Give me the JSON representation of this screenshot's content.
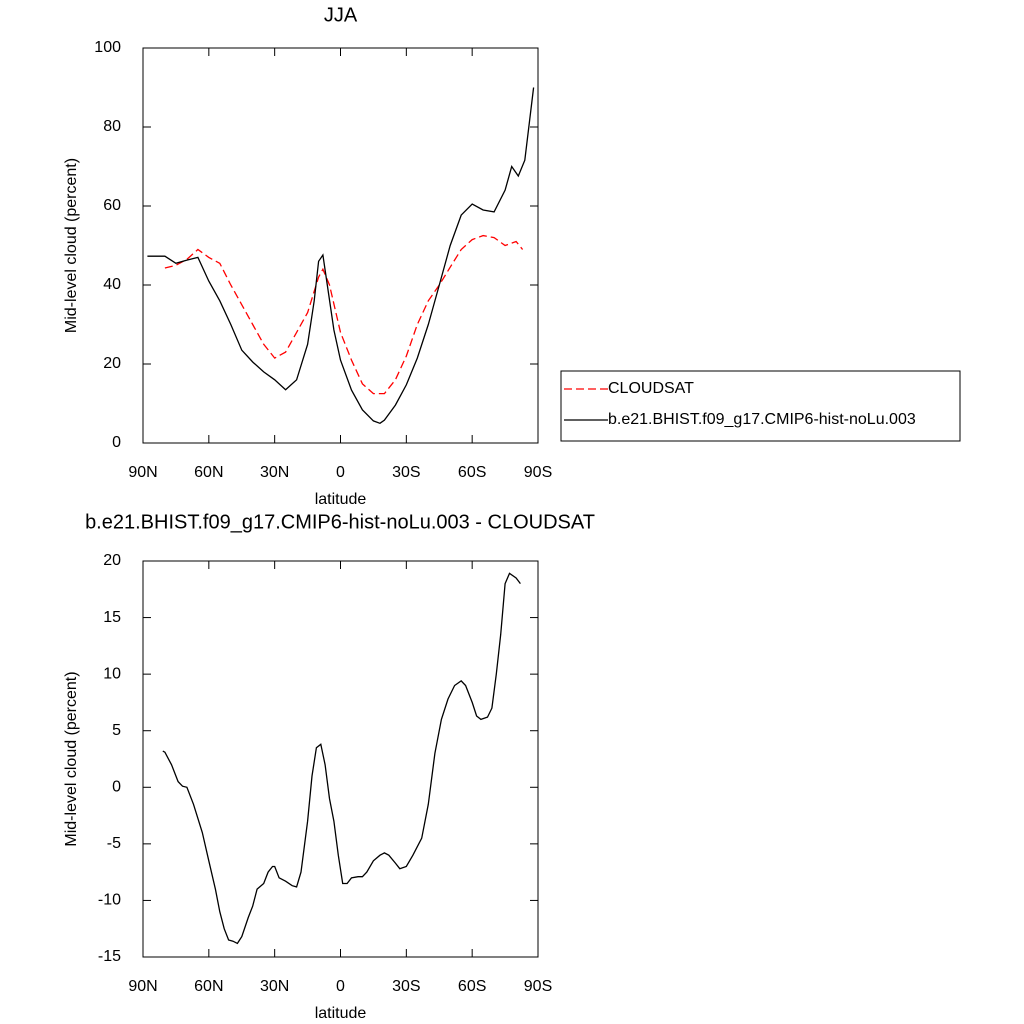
{
  "chart_data": [
    {
      "type": "line",
      "title": "JJA",
      "x_label": "latitude",
      "y_label": "Mid-level cloud (percent)",
      "xlim": [
        90,
        -90
      ],
      "xticks": [
        {
          "value": 90,
          "label": "90N"
        },
        {
          "value": 60,
          "label": "60N"
        },
        {
          "value": 30,
          "label": "30N"
        },
        0,
        {
          "value": -30,
          "label": "30S"
        },
        {
          "value": -60,
          "label": "60S"
        },
        {
          "value": -90,
          "label": "90S"
        }
      ],
      "ylim": [
        0,
        100
      ],
      "yticks": [
        0,
        20,
        40,
        60,
        80,
        100
      ],
      "legend": "right",
      "series": [
        {
          "name": "CLOUDSAT",
          "color": "#ff0000",
          "dashed": true,
          "x": [
            80,
            75,
            70,
            65,
            60,
            55,
            50,
            45,
            40,
            35,
            30,
            25,
            20,
            15,
            10,
            8,
            5,
            0,
            -5,
            -10,
            -15,
            -20,
            -25,
            -30,
            -35,
            -40,
            -45,
            -50,
            -55,
            -60,
            -65,
            -70,
            -75,
            -80,
            -83
          ],
          "values": [
            44.3,
            45,
            46.5,
            49,
            47,
            45.5,
            40,
            35,
            30,
            25,
            21.5,
            23,
            28,
            33,
            42,
            44,
            40,
            28,
            21,
            15,
            12.5,
            12.5,
            16,
            22,
            30,
            36,
            40,
            44.5,
            49,
            51.5,
            52.5,
            52,
            50,
            51,
            49
          ]
        },
        {
          "name": "b.e21.BHIST.f09_g17.CMIP6-hist-noLu.003",
          "color": "#000000",
          "dashed": false,
          "x": [
            88,
            80,
            75,
            70,
            65,
            60,
            55,
            50,
            45,
            40,
            35,
            30,
            25,
            20,
            15,
            12,
            10,
            8,
            6,
            3,
            0,
            -5,
            -10,
            -15,
            -18,
            -20,
            -25,
            -30,
            -35,
            -40,
            -45,
            -50,
            -55,
            -60,
            -65,
            -70,
            -75,
            -78,
            -81,
            -84,
            -88
          ],
          "values": [
            47.3,
            47.3,
            45.5,
            46.3,
            47,
            41,
            36,
            30,
            23.5,
            20.5,
            18,
            16,
            13.5,
            16,
            25,
            36,
            46,
            47.6,
            40,
            28.6,
            21,
            13.4,
            8.4,
            5.6,
            5,
            5.8,
            9.6,
            14.7,
            21.5,
            30,
            40,
            50,
            57.7,
            60.5,
            59,
            58.5,
            64,
            70,
            67.6,
            71.6,
            90
          ]
        }
      ]
    },
    {
      "type": "line",
      "title": "b.e21.BHIST.f09_g17.CMIP6-hist-noLu.003 - CLOUDSAT",
      "x_label": "latitude",
      "y_label": "Mid-level cloud (percent)",
      "xlim": [
        90,
        -90
      ],
      "xticks": [
        {
          "value": 90,
          "label": "90N"
        },
        {
          "value": 60,
          "label": "60N"
        },
        {
          "value": 30,
          "label": "30N"
        },
        0,
        {
          "value": -30,
          "label": "30S"
        },
        {
          "value": -60,
          "label": "60S"
        },
        {
          "value": -90,
          "label": "90S"
        }
      ],
      "ylim": [
        -15,
        20
      ],
      "yticks": [
        -15,
        -10,
        -5,
        0,
        5,
        10,
        15,
        20
      ],
      "series": [
        {
          "color": "#000000",
          "dashed": false,
          "x": [
            81,
            80,
            77,
            74,
            72,
            70,
            67,
            63,
            60,
            57,
            55,
            53,
            51,
            49,
            47,
            45,
            42,
            40,
            38,
            35,
            33,
            31,
            30,
            28,
            25,
            22,
            20,
            18,
            15,
            13,
            11,
            9,
            7,
            5,
            3,
            1,
            -1,
            -3,
            -5,
            -8,
            -10,
            -12,
            -15,
            -18,
            -20,
            -22,
            -25,
            -27,
            -30,
            -33,
            -37,
            -40,
            -43,
            -46,
            -49,
            -52,
            -55,
            -57,
            -60,
            -62,
            -64,
            -67,
            -69,
            -71,
            -73,
            -75,
            -77,
            -80,
            -82
          ],
          "values": [
            3.2,
            3.1,
            2,
            0.5,
            0.1,
            0,
            -1.5,
            -4,
            -6.5,
            -9,
            -11,
            -12.5,
            -13.5,
            -13.6,
            -13.8,
            -13.2,
            -11.5,
            -10.5,
            -9,
            -8.5,
            -7.5,
            -7,
            -7,
            -8,
            -8.3,
            -8.7,
            -8.8,
            -7.5,
            -3,
            1,
            3.5,
            3.8,
            2,
            -1,
            -3,
            -6,
            -8.5,
            -8.5,
            -8,
            -7.9,
            -7.9,
            -7.5,
            -6.5,
            -6,
            -5.8,
            -6,
            -6.7,
            -7.2,
            -7,
            -6,
            -4.5,
            -1.5,
            3,
            6,
            7.8,
            9,
            9.4,
            9,
            7.5,
            6.3,
            6,
            6.2,
            7,
            10,
            13.5,
            18,
            18.9,
            18.5,
            18
          ]
        }
      ]
    }
  ]
}
